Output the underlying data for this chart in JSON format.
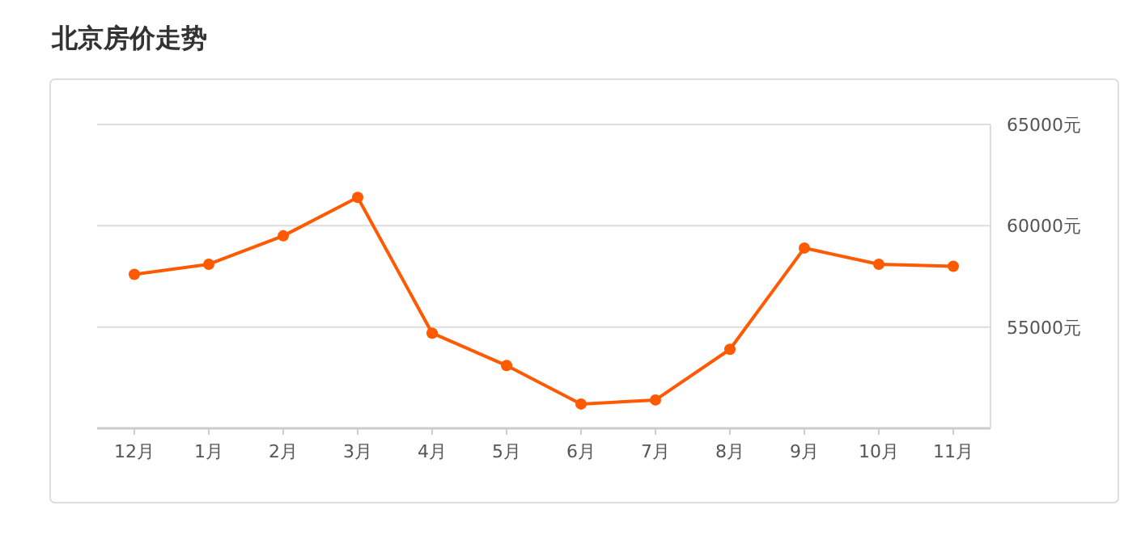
{
  "chart_data": {
    "type": "line",
    "title": "北京房价走势",
    "categories": [
      "12月",
      "1月",
      "2月",
      "3月",
      "4月",
      "5月",
      "6月",
      "7月",
      "8月",
      "9月",
      "10月",
      "11月"
    ],
    "series": [
      {
        "color": "#ff5a00",
        "values": [
          57600,
          58100,
          59500,
          61400,
          54700,
          53100,
          51200,
          51400,
          53900,
          58900,
          58100,
          58000
        ]
      }
    ],
    "ylim": [
      50000,
      65000
    ],
    "yticks": [
      {
        "value": 55000,
        "label": "55000元"
      },
      {
        "value": 60000,
        "label": "60000元"
      },
      {
        "value": 65000,
        "label": "65000元"
      }
    ],
    "grid": "y",
    "marker": "circle",
    "line_style": "solid"
  }
}
